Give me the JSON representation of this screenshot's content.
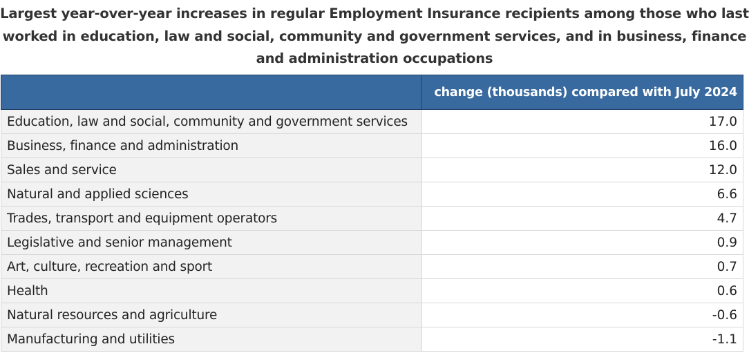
{
  "title": "Largest year-over-year increases in regular Employment Insurance recipients among those who last worked in education, law and social, community and government services, and in business, finance and administration occupations",
  "colors": {
    "header_background": "#386aa0",
    "header_text": "#ffffff"
  },
  "chart_data": {
    "type": "table",
    "title": "Largest year-over-year increases in regular Employment Insurance recipients among those who last worked in education, law and social, community and government services, and in business, finance and administration occupations",
    "columns": [
      "",
      "change (thousands) compared with July 2024"
    ],
    "rows": [
      {
        "category": "Education, law and social, community and government services",
        "value": "17.0"
      },
      {
        "category": "Business, finance and administration",
        "value": "16.0"
      },
      {
        "category": "Sales and service",
        "value": "12.0"
      },
      {
        "category": "Natural and applied sciences",
        "value": "6.6"
      },
      {
        "category": "Trades, transport and equipment operators",
        "value": "4.7"
      },
      {
        "category": "Legislative and senior management",
        "value": "0.9"
      },
      {
        "category": "Art, culture, recreation and sport",
        "value": "0.7"
      },
      {
        "category": "Health",
        "value": "0.6"
      },
      {
        "category": "Natural resources and agriculture",
        "value": "-0.6"
      },
      {
        "category": "Manufacturing and utilities",
        "value": "-1.1"
      }
    ]
  }
}
